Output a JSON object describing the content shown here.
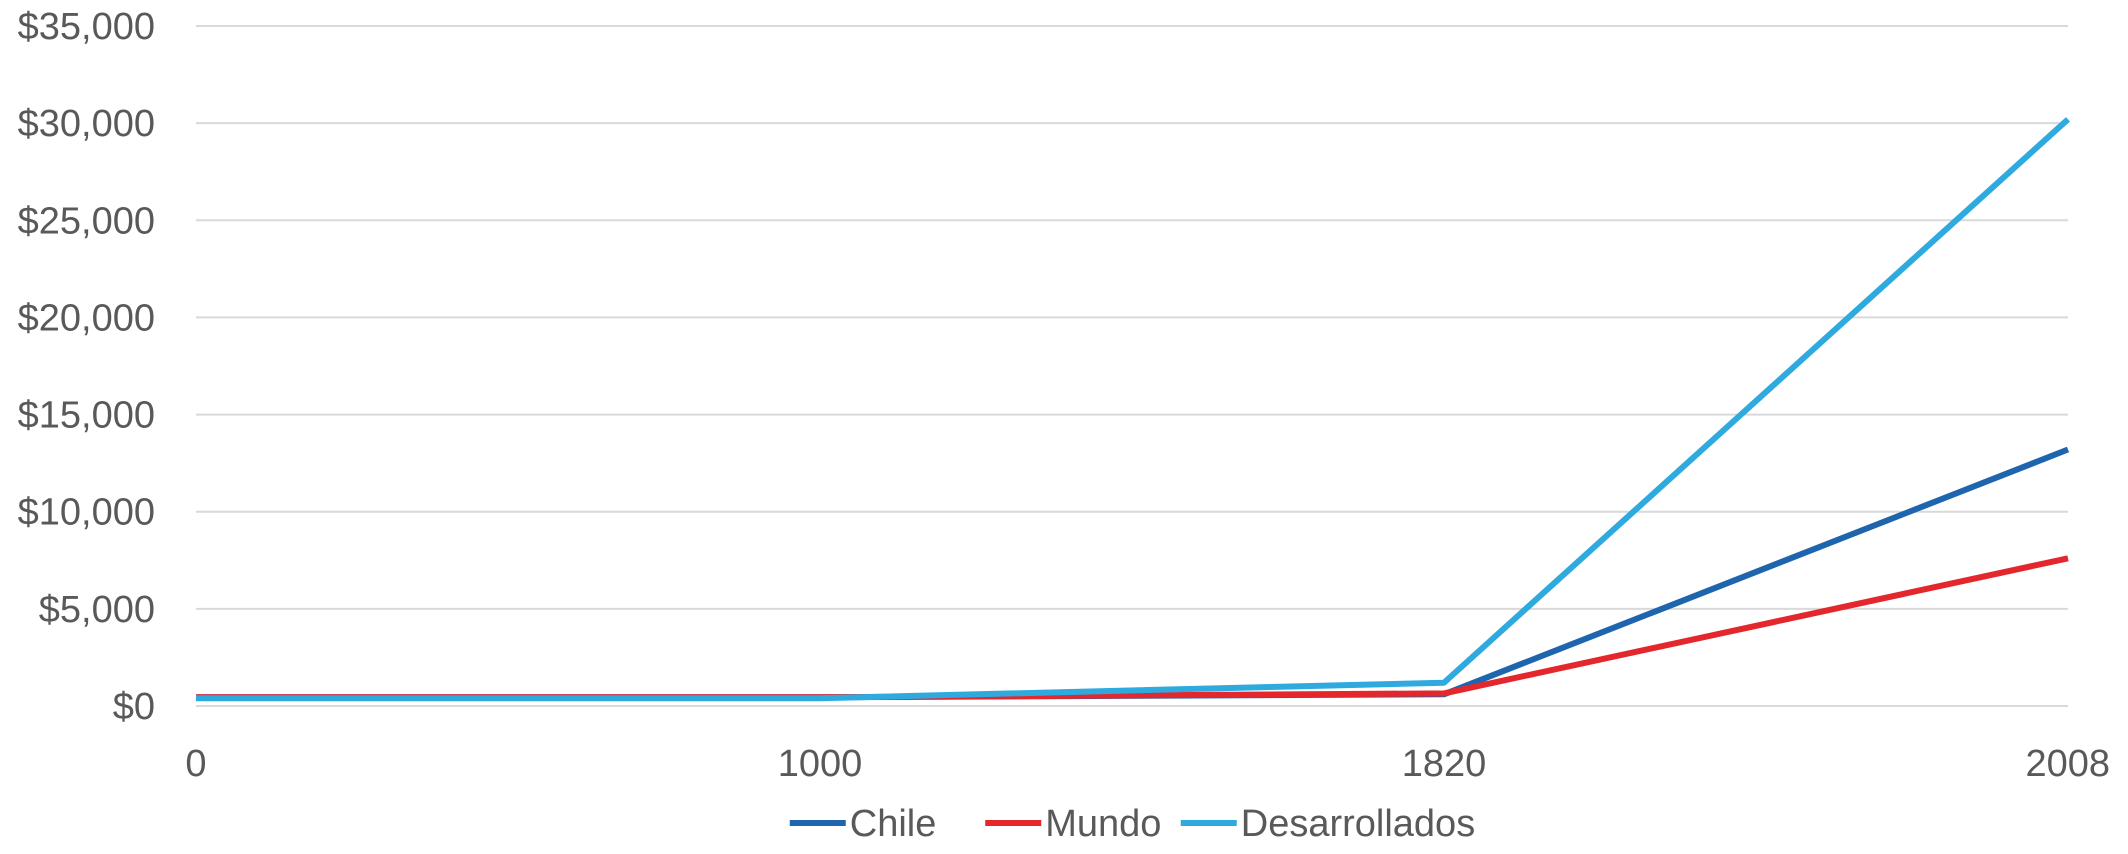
{
  "chart_data": {
    "type": "line",
    "title": "",
    "xlabel": "",
    "ylabel": "",
    "categories": [
      "0",
      "1000",
      "1820",
      "2008"
    ],
    "y_tick_labels": [
      "$0",
      "$5,000",
      "$10,000",
      "$15,000",
      "$20,000",
      "$25,000",
      "$30,000",
      "$35,000"
    ],
    "y_ticks": [
      0,
      5000,
      10000,
      15000,
      20000,
      25000,
      30000,
      35000
    ],
    "ylim": [
      0,
      35000
    ],
    "grid": true,
    "legend_position": "bottom",
    "series": [
      {
        "name": "Chile",
        "color": "#1f65ad",
        "values": [
          450,
          450,
          600,
          13200
        ]
      },
      {
        "name": "Mundo",
        "color": "#e4272d",
        "values": [
          450,
          450,
          650,
          7600
        ]
      },
      {
        "name": "Desarrollados",
        "color": "#2eaadf",
        "values": [
          400,
          400,
          1200,
          30200
        ]
      }
    ]
  }
}
